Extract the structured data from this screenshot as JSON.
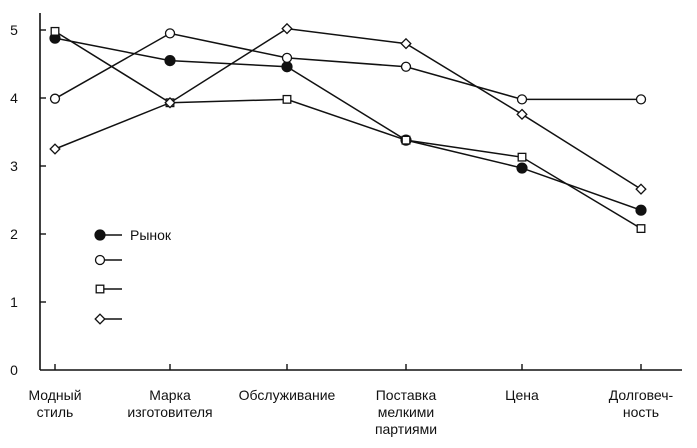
{
  "chart_data": {
    "type": "line",
    "title": "",
    "xlabel": "",
    "ylabel": "",
    "ylim": [
      0,
      5
    ],
    "yticks": [
      0,
      1,
      2,
      3,
      4,
      5
    ],
    "grid": false,
    "legend_position": "left-middle",
    "categories": [
      [
        "Модный",
        "стиль"
      ],
      [
        "Марка",
        "изготовителя"
      ],
      [
        "Обслуживание"
      ],
      [
        "Поставка",
        "мелкими",
        "партиями"
      ],
      [
        "Цена"
      ],
      [
        "Долговеч-",
        "ность"
      ]
    ],
    "series": [
      {
        "name": "Рынок",
        "marker": "filled-circle",
        "values": [
          4.88,
          4.55,
          4.46,
          3.38,
          2.97,
          2.35
        ]
      },
      {
        "name": "",
        "marker": "open-circle",
        "values": [
          3.99,
          4.95,
          4.59,
          4.46,
          3.98,
          3.98
        ]
      },
      {
        "name": "",
        "marker": "open-square",
        "values": [
          4.98,
          3.93,
          3.98,
          3.38,
          3.13,
          2.08
        ]
      },
      {
        "name": "",
        "marker": "open-diamond",
        "values": [
          3.25,
          3.93,
          5.02,
          4.8,
          3.76,
          2.66
        ]
      }
    ]
  }
}
